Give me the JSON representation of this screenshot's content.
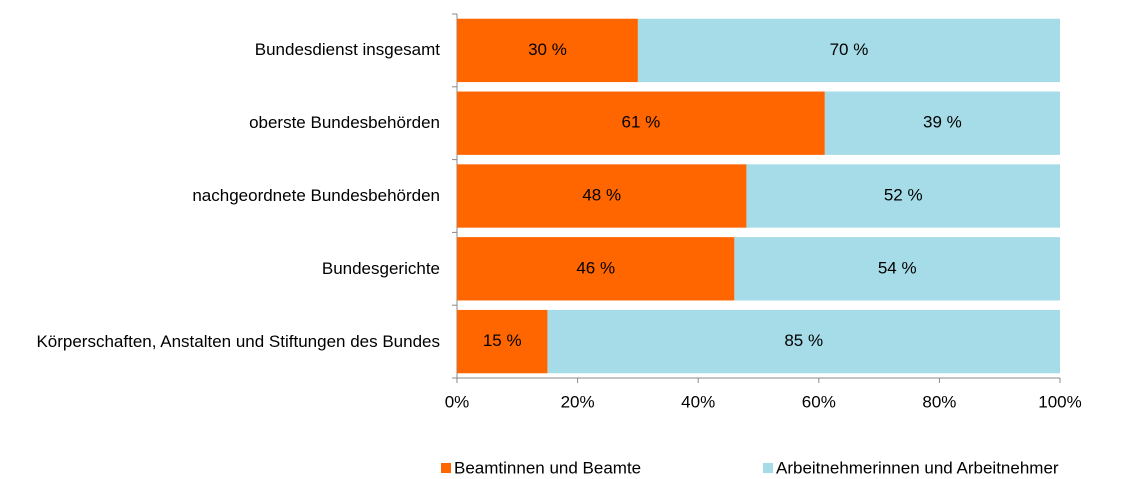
{
  "chart_data": {
    "type": "stacked_bar_horizontal",
    "categories": [
      "Bundesdienst insgesamt",
      "oberste Bundesbehörden",
      "nachgeordnete Bundesbehörden",
      "Bundesgerichte",
      "Körperschaften, Anstalten und Stiftungen des Bundes"
    ],
    "series": [
      {
        "name": "Beamtinnen und Beamte",
        "color": "#ff6600",
        "values": [
          30,
          61,
          48,
          46,
          15
        ],
        "value_labels": [
          "30 %",
          "61 %",
          "48 %",
          "46 %",
          "15 %"
        ]
      },
      {
        "name": "Arbeitnehmerinnen und Arbeitnehmer",
        "color": "#a5dce8",
        "values": [
          70,
          39,
          52,
          54,
          85
        ],
        "value_labels": [
          "70 %",
          "39 %",
          "52 %",
          "54 %",
          "85 %"
        ]
      }
    ],
    "xlim": [
      0,
      100
    ],
    "xticks": [
      {
        "value": 0,
        "label": "0%"
      },
      {
        "value": 20,
        "label": "20%"
      },
      {
        "value": 40,
        "label": "40%"
      },
      {
        "value": 60,
        "label": "60%"
      },
      {
        "value": 80,
        "label": "80%"
      },
      {
        "value": 100,
        "label": "100%"
      }
    ],
    "legend": "bottom"
  }
}
